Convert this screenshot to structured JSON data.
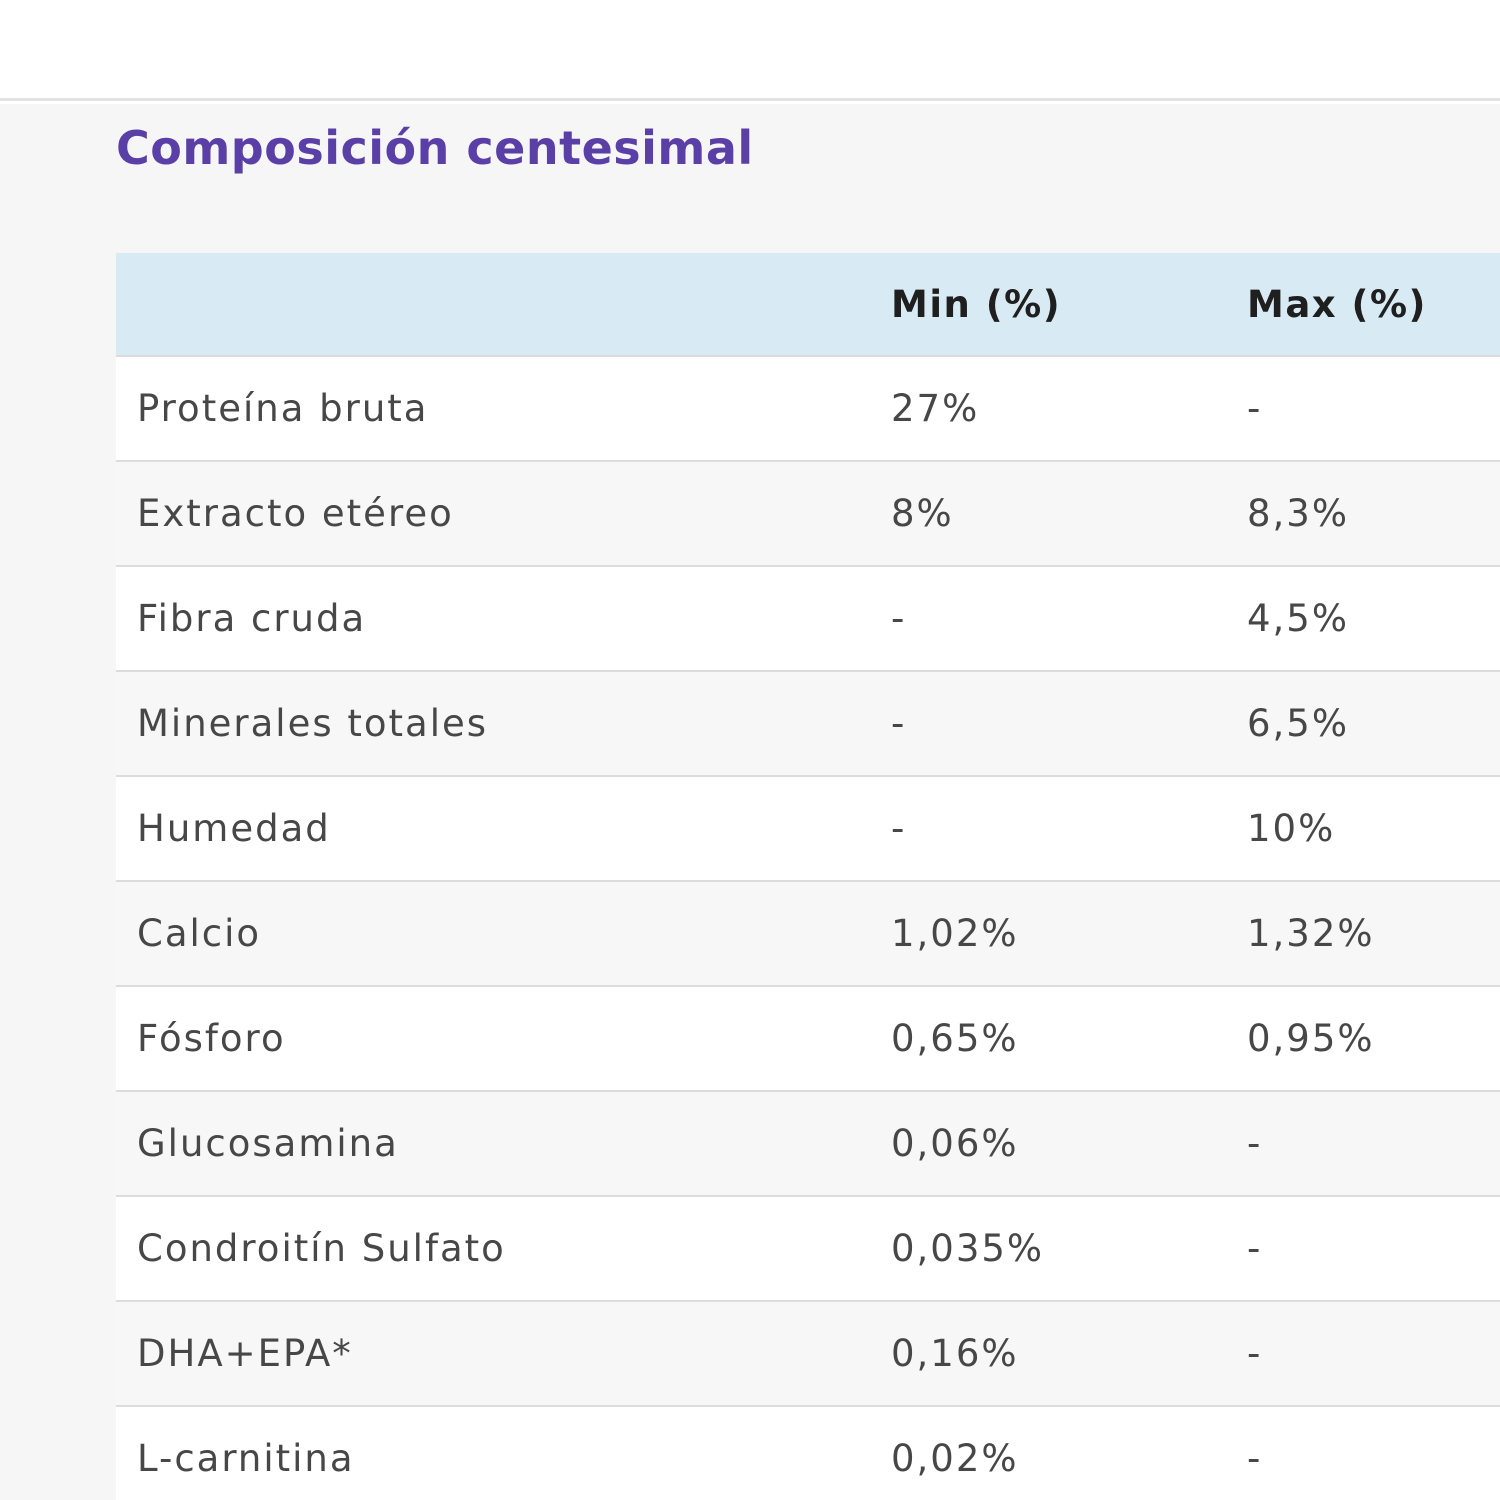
{
  "colors": {
    "title": "#5a3fa6",
    "header_bg": "#d8ebf4",
    "row_odd": "#ffffff",
    "row_even": "#f7f7f7"
  },
  "section": {
    "title": "Composición centesimal"
  },
  "table": {
    "headers": {
      "name": "",
      "min": "Min (%)",
      "max": "Max (%)"
    },
    "rows": [
      {
        "name": "Proteína bruta",
        "min": "27%",
        "max": "-"
      },
      {
        "name": "Extracto etéreo",
        "min": "8%",
        "max": "8,3%"
      },
      {
        "name": "Fibra cruda",
        "min": "-",
        "max": "4,5%"
      },
      {
        "name": "Minerales totales",
        "min": "-",
        "max": "6,5%"
      },
      {
        "name": "Humedad",
        "min": "-",
        "max": "10%"
      },
      {
        "name": "Calcio",
        "min": "1,02%",
        "max": "1,32%"
      },
      {
        "name": "Fósforo",
        "min": "0,65%",
        "max": "0,95%"
      },
      {
        "name": "Glucosamina",
        "min": "0,06%",
        "max": "-"
      },
      {
        "name": "Condroitín Sulfato",
        "min": "0,035%",
        "max": "-"
      },
      {
        "name": "DHA+EPA*",
        "min": "0,16%",
        "max": "-"
      },
      {
        "name": "L-carnitina",
        "min": "0,02%",
        "max": "-"
      }
    ]
  }
}
